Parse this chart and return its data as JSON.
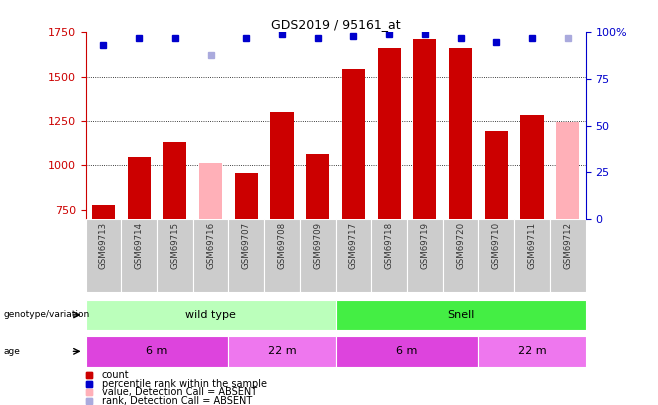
{
  "title": "GDS2019 / 95161_at",
  "samples": [
    "GSM69713",
    "GSM69714",
    "GSM69715",
    "GSM69716",
    "GSM69707",
    "GSM69708",
    "GSM69709",
    "GSM69717",
    "GSM69718",
    "GSM69719",
    "GSM69720",
    "GSM69710",
    "GSM69711",
    "GSM69712"
  ],
  "counts": [
    780,
    1050,
    1130,
    null,
    960,
    1300,
    1065,
    1545,
    1660,
    1710,
    1660,
    1195,
    1285,
    null
  ],
  "counts_absent": [
    null,
    null,
    null,
    1015,
    null,
    null,
    null,
    null,
    null,
    null,
    null,
    null,
    null,
    1245
  ],
  "ranks": [
    93,
    97,
    97,
    null,
    97,
    99,
    97,
    98,
    99,
    99,
    97,
    95,
    97,
    null
  ],
  "ranks_absent": [
    null,
    null,
    null,
    88,
    null,
    null,
    null,
    null,
    null,
    null,
    null,
    null,
    null,
    97
  ],
  "ylim_left": [
    700,
    1750
  ],
  "ylim_right": [
    0,
    100
  ],
  "yticks_left": [
    750,
    1000,
    1250,
    1500,
    1750
  ],
  "yticks_right": [
    0,
    25,
    50,
    75,
    100
  ],
  "bar_color": "#cc0000",
  "bar_absent_color": "#ffb0b8",
  "rank_color": "#0000cc",
  "rank_absent_color": "#aaaadd",
  "genotype_wildtype": {
    "label": "wild type",
    "span": [
      0,
      7
    ],
    "color": "#bbffbb"
  },
  "genotype_snell": {
    "label": "Snell",
    "span": [
      7,
      14
    ],
    "color": "#44ee44"
  },
  "age_groups": [
    {
      "label": "6 m",
      "span": [
        0,
        4
      ],
      "color": "#dd44dd"
    },
    {
      "label": "22 m",
      "span": [
        4,
        7
      ],
      "color": "#ee77ee"
    },
    {
      "label": "6 m",
      "span": [
        7,
        11
      ],
      "color": "#dd44dd"
    },
    {
      "label": "22 m",
      "span": [
        11,
        14
      ],
      "color": "#ee77ee"
    }
  ],
  "legend_items": [
    {
      "label": "count",
      "color": "#cc0000"
    },
    {
      "label": "percentile rank within the sample",
      "color": "#0000cc"
    },
    {
      "label": "value, Detection Call = ABSENT",
      "color": "#ffb0b8"
    },
    {
      "label": "rank, Detection Call = ABSENT",
      "color": "#aaaadd"
    }
  ],
  "left_tick_color": "#cc0000",
  "right_tick_color": "#0000cc",
  "grid_yticks": [
    1000,
    1250,
    1500
  ],
  "sample_bg_color": "#cccccc",
  "sample_text_color": "#333333"
}
